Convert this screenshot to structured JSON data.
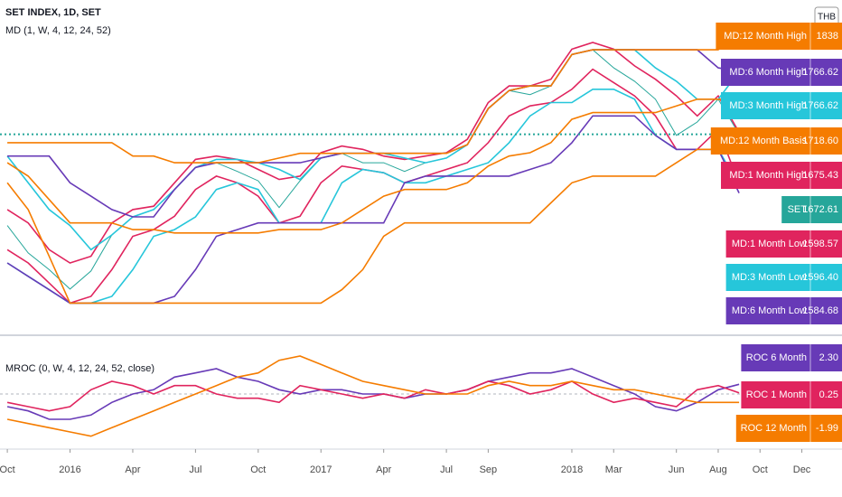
{
  "chart_data": [
    {
      "type": "line",
      "title": "SET INDEX, 1D, SET",
      "subtitle": "MD (1, W, 4, 12, 24, 52)",
      "currency": "THB",
      "x": [
        0,
        1,
        2,
        3,
        4,
        5,
        6,
        7,
        8,
        9,
        10,
        11,
        12,
        13,
        14,
        15,
        16,
        17,
        18,
        19,
        20,
        21,
        22,
        23,
        24,
        25,
        26,
        27,
        28,
        29,
        30,
        31,
        32,
        33,
        34,
        35
      ],
      "xlim": [
        -0.35,
        35.6
      ],
      "ylim": [
        1380,
        1860
      ],
      "series": [
        {
          "name": "SET",
          "color": "#26a69a",
          "values": [
            1536,
            1495,
            1470,
            1441,
            1468,
            1522,
            1549,
            1549,
            1590,
            1623,
            1630,
            1617,
            1603,
            1563,
            1603,
            1637,
            1644,
            1630,
            1630,
            1617,
            1630,
            1637,
            1657,
            1711,
            1738,
            1732,
            1745,
            1792,
            1799,
            1772,
            1752,
            1725,
            1671,
            1691,
            1725,
            1672.61
          ],
          "value_labels": [
            null,
            null,
            null,
            null,
            null,
            null,
            null,
            null,
            null,
            null,
            null,
            null,
            null,
            null,
            null,
            null,
            null,
            null,
            null,
            null,
            null,
            null,
            null,
            null,
            null,
            null,
            null,
            null,
            null,
            null,
            null,
            null,
            null,
            null,
            null,
            "1672.61"
          ]
        },
        {
          "name": "MD:1 Month High",
          "color": "#e0245e",
          "values": [
            1560,
            1540,
            1500,
            1480,
            1490,
            1540,
            1560,
            1565,
            1600,
            1635,
            1640,
            1635,
            1620,
            1605,
            1610,
            1645,
            1655,
            1650,
            1640,
            1635,
            1640,
            1645,
            1665,
            1720,
            1745,
            1745,
            1755,
            1800,
            1810,
            1800,
            1775,
            1755,
            1730,
            1700,
            1730,
            1675.43
          ],
          "value_labels": [
            null,
            null,
            null,
            null,
            null,
            null,
            null,
            null,
            null,
            null,
            null,
            null,
            null,
            null,
            null,
            null,
            null,
            null,
            null,
            null,
            null,
            null,
            null,
            null,
            null,
            null,
            null,
            null,
            null,
            null,
            null,
            null,
            null,
            null,
            null,
            "1675.43"
          ]
        },
        {
          "name": "MD:1 Month Low",
          "color": "#e0245e",
          "values": [
            1500,
            1480,
            1450,
            1420,
            1430,
            1470,
            1520,
            1530,
            1550,
            1590,
            1610,
            1600,
            1580,
            1540,
            1550,
            1600,
            1625,
            1620,
            1615,
            1600,
            1610,
            1620,
            1630,
            1660,
            1700,
            1715,
            1720,
            1740,
            1770,
            1750,
            1730,
            1700,
            1650,
            1650,
            1680,
            1598.57
          ],
          "value_labels": [
            null,
            null,
            null,
            null,
            null,
            null,
            null,
            null,
            null,
            null,
            null,
            null,
            null,
            null,
            null,
            null,
            null,
            null,
            null,
            null,
            null,
            null,
            null,
            null,
            null,
            null,
            null,
            null,
            null,
            null,
            null,
            null,
            null,
            null,
            null,
            "1598.57"
          ]
        },
        {
          "name": "MD:3 Month High",
          "color": "#26c6da",
          "values": [
            1640,
            1600,
            1560,
            1536,
            1500,
            1522,
            1549,
            1560,
            1590,
            1623,
            1635,
            1635,
            1630,
            1620,
            1605,
            1637,
            1644,
            1644,
            1644,
            1637,
            1630,
            1637,
            1657,
            1711,
            1738,
            1745,
            1745,
            1792,
            1799,
            1799,
            1799,
            1772,
            1752,
            1725,
            1725,
            1766.62
          ],
          "value_labels": [
            null,
            null,
            null,
            null,
            null,
            null,
            null,
            null,
            null,
            null,
            null,
            null,
            null,
            null,
            null,
            null,
            null,
            null,
            null,
            null,
            null,
            null,
            null,
            null,
            null,
            null,
            null,
            null,
            null,
            null,
            null,
            null,
            null,
            null,
            null,
            "1766.62"
          ]
        },
        {
          "name": "MD:3 Month Low",
          "color": "#26c6da",
          "values": [
            1480,
            1460,
            1440,
            1420,
            1420,
            1430,
            1470,
            1520,
            1530,
            1549,
            1590,
            1600,
            1590,
            1540,
            1540,
            1540,
            1600,
            1620,
            1615,
            1600,
            1600,
            1610,
            1620,
            1630,
            1660,
            1700,
            1720,
            1720,
            1740,
            1740,
            1725,
            1671,
            1650,
            1650,
            1650,
            1596.4
          ],
          "value_labels": [
            null,
            null,
            null,
            null,
            null,
            null,
            null,
            null,
            null,
            null,
            null,
            null,
            null,
            null,
            null,
            null,
            null,
            null,
            null,
            null,
            null,
            null,
            null,
            null,
            null,
            null,
            null,
            null,
            null,
            null,
            null,
            null,
            null,
            null,
            null,
            "1596.40"
          ]
        },
        {
          "name": "MD:6 Month High",
          "color": "#673ab7",
          "values": [
            1640,
            1640,
            1640,
            1600,
            1580,
            1560,
            1549,
            1549,
            1590,
            1623,
            1630,
            1630,
            1630,
            1630,
            1630,
            1637,
            1644,
            1644,
            1644,
            1644,
            1644,
            1644,
            1657,
            1711,
            1738,
            1745,
            1745,
            1792,
            1799,
            1799,
            1799,
            1799,
            1799,
            1799,
            1772,
            1766.62
          ],
          "value_labels": [
            null,
            null,
            null,
            null,
            null,
            null,
            null,
            null,
            null,
            null,
            null,
            null,
            null,
            null,
            null,
            null,
            null,
            null,
            null,
            null,
            null,
            null,
            null,
            null,
            null,
            null,
            null,
            null,
            null,
            null,
            null,
            null,
            null,
            null,
            null,
            "1766.62"
          ]
        },
        {
          "name": "MD:6 Month Low",
          "color": "#673ab7",
          "values": [
            1480,
            1460,
            1440,
            1420,
            1420,
            1420,
            1420,
            1420,
            1430,
            1470,
            1520,
            1530,
            1540,
            1540,
            1540,
            1540,
            1540,
            1540,
            1540,
            1600,
            1610,
            1610,
            1610,
            1610,
            1610,
            1620,
            1630,
            1660,
            1700,
            1700,
            1700,
            1671,
            1650,
            1650,
            1650,
            1584.68
          ],
          "value_labels": [
            null,
            null,
            null,
            null,
            null,
            null,
            null,
            null,
            null,
            null,
            null,
            null,
            null,
            null,
            null,
            null,
            null,
            null,
            null,
            null,
            null,
            null,
            null,
            null,
            null,
            null,
            null,
            null,
            null,
            null,
            null,
            null,
            null,
            null,
            null,
            "1584.68"
          ]
        },
        {
          "name": "MD:12 Month High",
          "color": "#f57c00",
          "values": [
            1660,
            1660,
            1660,
            1660,
            1660,
            1660,
            1640,
            1640,
            1630,
            1630,
            1630,
            1630,
            1630,
            1637,
            1644,
            1644,
            1644,
            1644,
            1644,
            1644,
            1644,
            1644,
            1657,
            1711,
            1738,
            1745,
            1745,
            1792,
            1799,
            1799,
            1799,
            1799,
            1799,
            1799,
            1799,
            1838
          ]
        },
        {
          "color": "#f57c00",
          "values": [
            1600,
            1560,
            1490,
            1420,
            1420,
            1420,
            1420,
            1420,
            1420,
            1420,
            1420,
            1420,
            1420,
            1420,
            1420,
            1420,
            1440,
            1470,
            1520,
            1540,
            1540,
            1540,
            1540,
            1540,
            1540,
            1540,
            1570,
            1600,
            1610,
            1610,
            1610,
            1610,
            1630,
            1650,
            1650,
            1660
          ]
        },
        {
          "name": "MD:12 Month Basis",
          "color": "#f57c00",
          "values": [
            1630,
            1610,
            1575,
            1540,
            1540,
            1540,
            1530,
            1530,
            1525,
            1525,
            1525,
            1525,
            1525,
            1530,
            1530,
            1530,
            1540,
            1560,
            1580,
            1590,
            1590,
            1590,
            1600,
            1625,
            1640,
            1645,
            1660,
            1695,
            1705,
            1705,
            1705,
            1705,
            1715,
            1725,
            1725,
            1718.6
          ],
          "value_labels": [
            null,
            null,
            null,
            null,
            null,
            null,
            null,
            null,
            null,
            null,
            null,
            null,
            null,
            null,
            null,
            null,
            null,
            null,
            null,
            null,
            null,
            null,
            null,
            null,
            null,
            null,
            null,
            null,
            null,
            null,
            null,
            null,
            null,
            null,
            null,
            "1718.60"
          ]
        }
      ]
    },
    {
      "type": "line",
      "title": "MROC (0, W, 4, 12, 24, 52, close)",
      "x": [
        0,
        1,
        2,
        3,
        4,
        5,
        6,
        7,
        8,
        9,
        10,
        11,
        12,
        13,
        14,
        15,
        16,
        17,
        18,
        19,
        20,
        21,
        22,
        23,
        24,
        25,
        26,
        27,
        28,
        29,
        30,
        31,
        32,
        33,
        34,
        35
      ],
      "xlim": [
        -0.35,
        35.6
      ],
      "ylim": [
        -12,
        12
      ],
      "xticks": [
        {
          "value": 0,
          "label": "Oct"
        },
        {
          "value": 3,
          "label": "2016"
        },
        {
          "value": 6,
          "label": "Apr"
        },
        {
          "value": 9,
          "label": "Jul"
        },
        {
          "value": 12,
          "label": "Oct"
        },
        {
          "value": 15,
          "label": "2017"
        },
        {
          "value": 18,
          "label": "Apr"
        },
        {
          "value": 21,
          "label": "Jul"
        },
        {
          "value": 23,
          "label": "Sep"
        },
        {
          "value": 27,
          "label": "2018"
        },
        {
          "value": 29,
          "label": "Mar"
        },
        {
          "value": 32,
          "label": "Jun"
        },
        {
          "value": 34,
          "label": "Aug"
        },
        {
          "value": 36,
          "label": "Oct"
        },
        {
          "value": 38,
          "label": "Dec"
        }
      ],
      "series": [
        {
          "name": "ROC 6 Month",
          "color": "#673ab7",
          "values": [
            -3,
            -4,
            -6,
            -6,
            -5,
            -2,
            0,
            1,
            4,
            5,
            6,
            4,
            3,
            1,
            0,
            1,
            1,
            0,
            0,
            -1,
            0,
            0,
            1,
            3,
            4,
            5,
            5,
            6,
            4,
            2,
            0,
            -3,
            -4,
            -2,
            1,
            2.3
          ],
          "value_labels": [
            null,
            null,
            null,
            null,
            null,
            null,
            null,
            null,
            null,
            null,
            null,
            null,
            null,
            null,
            null,
            null,
            null,
            null,
            null,
            null,
            null,
            null,
            null,
            null,
            null,
            null,
            null,
            null,
            null,
            null,
            null,
            null,
            null,
            null,
            null,
            "2.30"
          ]
        },
        {
          "name": "ROC 1 Month",
          "color": "#e0245e",
          "values": [
            -2,
            -3,
            -4,
            -3,
            1,
            3,
            2,
            0,
            2,
            2,
            0,
            -1,
            -1,
            -2,
            2,
            1,
            0,
            -1,
            0,
            -1,
            1,
            0,
            1,
            3,
            2,
            0,
            1,
            3,
            0,
            -2,
            -1,
            -2,
            -3,
            1,
            2,
            0.25
          ],
          "value_labels": [
            null,
            null,
            null,
            null,
            null,
            null,
            null,
            null,
            null,
            null,
            null,
            null,
            null,
            null,
            null,
            null,
            null,
            null,
            null,
            null,
            null,
            null,
            null,
            null,
            null,
            null,
            null,
            null,
            null,
            null,
            null,
            null,
            null,
            null,
            null,
            "0.25"
          ]
        },
        {
          "name": "ROC 12 Month",
          "color": "#f57c00",
          "values": [
            -6,
            -7,
            -8,
            -9,
            -10,
            -8,
            -6,
            -4,
            -2,
            0,
            2,
            4,
            5,
            8,
            9,
            7,
            5,
            3,
            2,
            1,
            0,
            0,
            0,
            2,
            3,
            2,
            2,
            3,
            2,
            1,
            1,
            0,
            -1,
            -2,
            -2,
            -1.99
          ],
          "value_labels": [
            null,
            null,
            null,
            null,
            null,
            null,
            null,
            null,
            null,
            null,
            null,
            null,
            null,
            null,
            null,
            null,
            null,
            null,
            null,
            null,
            null,
            null,
            null,
            null,
            null,
            null,
            null,
            null,
            null,
            null,
            null,
            null,
            null,
            null,
            null,
            "-1.99"
          ]
        }
      ]
    }
  ]
}
